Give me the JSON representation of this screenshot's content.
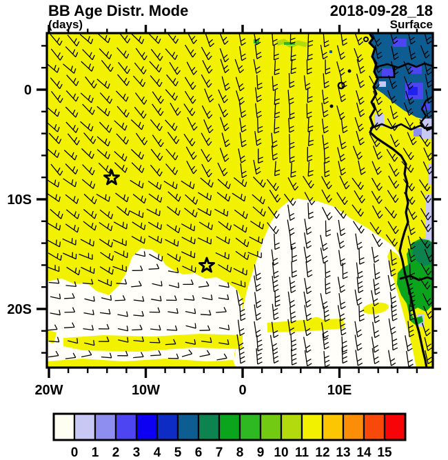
{
  "header": {
    "title": "BB Age Distr. Mode",
    "datetime": "2018-09-28_18",
    "units": "(days)",
    "level": "Surface"
  },
  "axes": {
    "x_ticks": [
      {
        "label": "20W",
        "lon": -20
      },
      {
        "label": "10W",
        "lon": -10
      },
      {
        "label": "0",
        "lon": 0
      },
      {
        "label": "10E",
        "lon": 10
      }
    ],
    "y_ticks": [
      {
        "label": "0",
        "lat": 0
      },
      {
        "label": "10S",
        "lat": -10
      },
      {
        "label": "20S",
        "lat": -20
      }
    ],
    "minor_step_deg": 2
  },
  "colorbar": {
    "tick_labels": [
      "0",
      "1",
      "2",
      "3",
      "4",
      "5",
      "6",
      "7",
      "8",
      "9",
      "10",
      "11",
      "12",
      "13",
      "14",
      "15"
    ],
    "colors": [
      "#fffef2",
      "#c8c8f4",
      "#8e8ef0",
      "#4d44f2",
      "#0d00f2",
      "#0d2cc4",
      "#0d5c92",
      "#0d8450",
      "#0aa51c",
      "#2eb822",
      "#72ca12",
      "#b2da0c",
      "#f2f200",
      "#fcc602",
      "#fc8d06",
      "#f8490a",
      "#f60408"
    ]
  },
  "palette": {
    "yellow": "#f2f200",
    "white": "#fffef8",
    "teal": "#0d5c92",
    "blue": "#4d44f2",
    "bright_blue": "#2220f0",
    "periwinkle": "#8e8ef0",
    "lavender": "#c8c8f4",
    "green": "#0aa51c",
    "dark_green": "#0d8450",
    "yellow_green": "#b2da0c",
    "mid_green": "#2eb822",
    "ink": "#000000"
  },
  "chart_data": {
    "type": "heatmap",
    "title": "BB Age Distr. Mode",
    "datetime": "2018-09-28_18",
    "level": "Surface",
    "units": "days",
    "x_tick_labels": [
      "20W",
      "10W",
      "0",
      "10E"
    ],
    "y_tick_labels": [
      "0",
      "10S",
      "20S"
    ],
    "lon_range": [
      -20,
      19.6
    ],
    "lat_range": [
      -25.3,
      5.2
    ],
    "colorbar_levels": [
      0,
      1,
      2,
      3,
      4,
      5,
      6,
      7,
      8,
      9,
      10,
      11,
      12,
      13,
      14,
      15
    ],
    "overlay": "surface wind barbs",
    "field_regions": [
      {
        "value": 12,
        "color": "#f2f200",
        "where": "dominant yellow field over most of the ocean domain"
      },
      {
        "value": 0,
        "color": "#fffef8",
        "where": "clear southeast wedge and southwest corner band"
      },
      {
        "value": 6,
        "color": "#0d5c92",
        "where": "teal block over land in the northeast corner"
      },
      {
        "value": 3,
        "color": "#4d44f2",
        "where": "blue patches embedded in the northeast teal block"
      },
      {
        "value": 1,
        "color": "#c8c8f4",
        "where": "lavender strips along the eastern (coastal) edge"
      },
      {
        "value": 8,
        "color": "#0aa51c",
        "where": "green blob on the Angola coast near 15-18S"
      },
      {
        "value": 11,
        "color": "#b2da0c",
        "where": "small yellow-green streak near the top centre"
      }
    ],
    "wind_summary": "SE trade-wind barbs over the yellow region curving to southerly near the equatorial coast; strong southerly barbs in the white wedge; light easterly barbs in the southwest white band",
    "markers": [
      {
        "type": "star",
        "lon": -13.5,
        "lat": -8.1
      },
      {
        "type": "star",
        "lon": -3.7,
        "lat": -16.0
      }
    ],
    "islands": [
      {
        "name": "small-dot",
        "lon": 11.1,
        "lat": 1.7
      },
      {
        "name": "ring",
        "lon": 10.2,
        "lat": 0.4
      },
      {
        "name": "small-dot",
        "lon": 9.2,
        "lat": -1.5
      }
    ]
  }
}
